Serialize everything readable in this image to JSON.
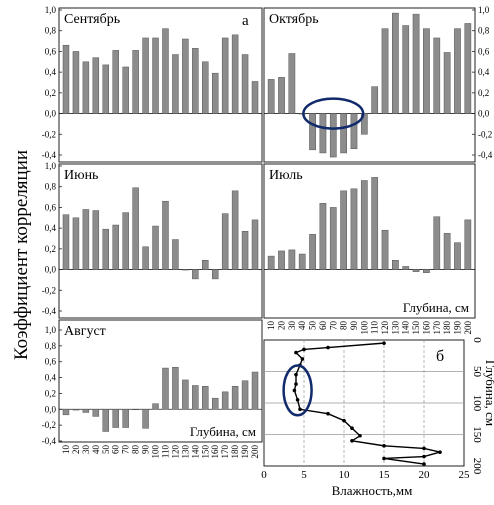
{
  "y_axis_label": "Коэффициент корреляции",
  "chart_data": [
    {
      "type": "bar",
      "title": "Сентябрь",
      "panel_letter": "а",
      "xlabel": "",
      "ylabel": "Коэффициент корреляции",
      "ylim": [
        -0.4,
        1.0
      ],
      "yticks": [
        "1,0",
        "0,8",
        "0,6",
        "0,4",
        "0,2",
        "0,0",
        "-0,2",
        "-0,4"
      ],
      "categories": [
        10,
        20,
        30,
        40,
        50,
        60,
        70,
        80,
        90,
        100,
        110,
        120,
        130,
        140,
        150,
        160,
        170,
        180,
        190,
        200
      ],
      "values": [
        0.66,
        0.6,
        0.5,
        0.54,
        0.47,
        0.61,
        0.45,
        0.61,
        0.73,
        0.73,
        0.82,
        0.57,
        0.72,
        0.63,
        0.5,
        0.39,
        0.73,
        0.76,
        0.57,
        0.31
      ],
      "color": "#8c8c8c"
    },
    {
      "type": "bar",
      "title": "Октябрь",
      "xlabel": "",
      "ylim": [
        -0.4,
        1.0
      ],
      "yticks": [
        "1,0",
        "0,8",
        "0,6",
        "0,4",
        "0,2",
        "0,0",
        "-0,2",
        "-0,4"
      ],
      "categories": [
        10,
        20,
        30,
        40,
        50,
        60,
        70,
        80,
        90,
        100,
        110,
        120,
        130,
        140,
        150,
        160,
        170,
        180,
        190,
        200
      ],
      "values": [
        0.33,
        0.35,
        0.58,
        0.0,
        -0.35,
        -0.38,
        -0.42,
        -0.38,
        -0.34,
        -0.2,
        0.26,
        0.82,
        0.97,
        0.85,
        0.96,
        0.82,
        0.73,
        0.59,
        0.82,
        0.87
      ],
      "highlight_range": [
        50,
        90
      ],
      "color": "#8c8c8c"
    },
    {
      "type": "bar",
      "title": "Июнь",
      "xlabel": "",
      "ylim": [
        -0.4,
        1.0
      ],
      "yticks": [
        "1,0",
        "0,8",
        "0,6",
        "0,4",
        "0,2",
        "0,0",
        "-0,2",
        "-0,4"
      ],
      "categories": [
        10,
        20,
        30,
        40,
        50,
        60,
        70,
        80,
        90,
        100,
        110,
        120,
        130,
        140,
        150,
        160,
        170,
        180,
        190,
        200
      ],
      "values": [
        0.53,
        0.5,
        0.58,
        0.57,
        0.39,
        0.43,
        0.55,
        0.79,
        0.22,
        0.42,
        0.66,
        0.29,
        0.0,
        -0.09,
        0.09,
        -0.09,
        0.54,
        0.76,
        0.37,
        0.48
      ],
      "color": "#8c8c8c"
    },
    {
      "type": "bar",
      "title": "Июль",
      "xlabel": "Глубина, см",
      "ylim": [
        -0.4,
        1.0
      ],
      "yticks": [],
      "categories": [
        10,
        20,
        30,
        40,
        50,
        60,
        70,
        80,
        90,
        100,
        110,
        120,
        130,
        140,
        150,
        160,
        170,
        180,
        190,
        200
      ],
      "values": [
        0.13,
        0.18,
        0.19,
        0.15,
        0.34,
        0.64,
        0.6,
        0.76,
        0.78,
        0.86,
        0.89,
        0.38,
        0.09,
        0.03,
        -0.02,
        -0.03,
        0.51,
        0.35,
        0.26,
        0.48
      ],
      "color": "#8c8c8c"
    },
    {
      "type": "bar",
      "title": "Август",
      "xlabel": "Глубина, см",
      "ylim": [
        -0.4,
        1.0
      ],
      "yticks": [
        "1,0",
        "0,8",
        "0,6",
        "0,4",
        "0,2",
        "0,0",
        "-0,2",
        "-0,4"
      ],
      "categories": [
        10,
        20,
        30,
        40,
        50,
        60,
        70,
        80,
        90,
        100,
        110,
        120,
        130,
        140,
        150,
        160,
        170,
        180,
        190,
        200
      ],
      "values": [
        -0.07,
        -0.01,
        -0.04,
        -0.09,
        -0.28,
        -0.23,
        -0.23,
        0.0,
        -0.24,
        0.07,
        0.52,
        0.53,
        0.37,
        0.3,
        0.29,
        0.14,
        0.22,
        0.29,
        0.36,
        0.47
      ],
      "color": "#8c8c8c"
    },
    {
      "type": "line",
      "panel_letter": "б",
      "xlabel": "Влажность,мм",
      "ylabel": "Глубина, см",
      "xlim": [
        0,
        25
      ],
      "ylim": [
        200,
        0
      ],
      "xticks": [
        "0",
        "5",
        "10",
        "15",
        "20",
        "25"
      ],
      "yticks": [
        "0",
        "50",
        "100",
        "150",
        "200"
      ],
      "points": [
        [
          15,
          5
        ],
        [
          8,
          12
        ],
        [
          5,
          15
        ],
        [
          4,
          20
        ],
        [
          4.8,
          30
        ],
        [
          4.5,
          40
        ],
        [
          4,
          55
        ],
        [
          4,
          70
        ],
        [
          3.8,
          80
        ],
        [
          4.2,
          95
        ],
        [
          4.5,
          110
        ],
        [
          8,
          117
        ],
        [
          10,
          128
        ],
        [
          11,
          140
        ],
        [
          12,
          152
        ],
        [
          11,
          160
        ],
        [
          15,
          168
        ],
        [
          20,
          172
        ],
        [
          22,
          178
        ],
        [
          20,
          185
        ],
        [
          15,
          188
        ],
        [
          20,
          197
        ]
      ],
      "highlight_range": [
        50,
        110
      ],
      "color": "#000000"
    }
  ]
}
